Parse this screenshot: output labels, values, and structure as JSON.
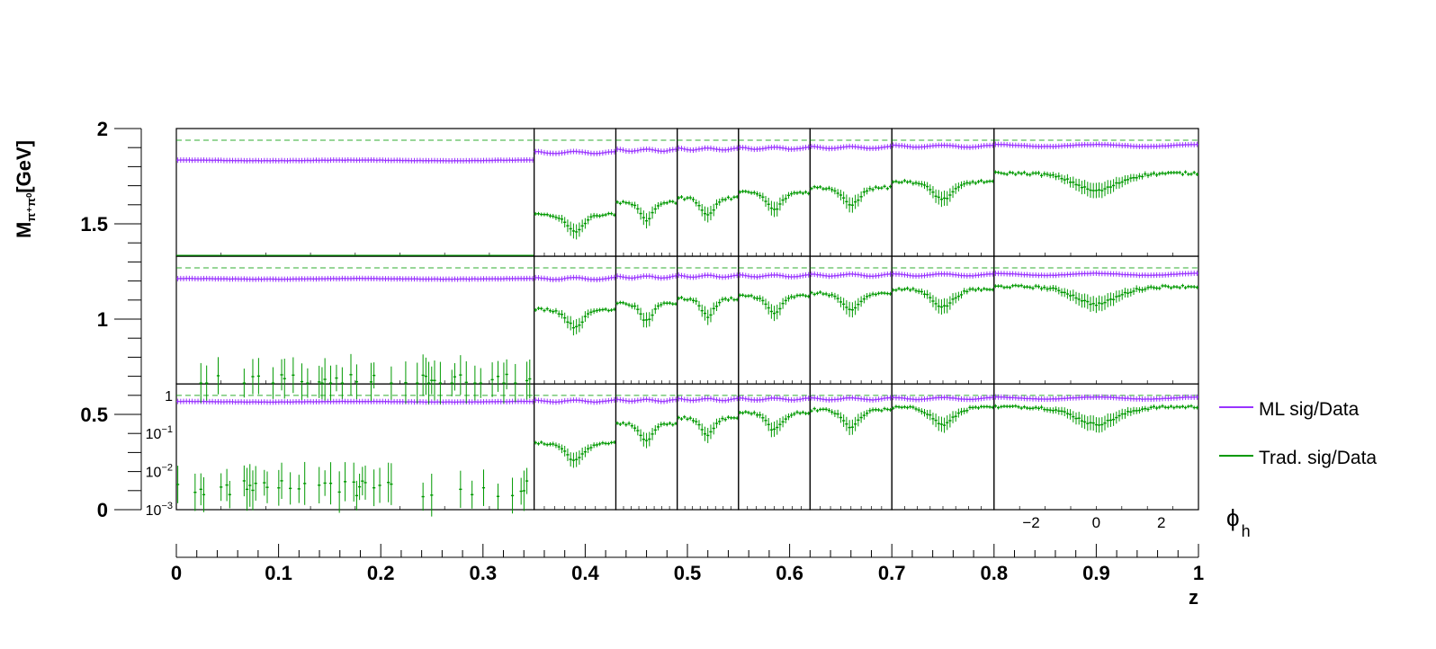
{
  "chart_data": {
    "type": "scatter",
    "title": "",
    "xlabel": "z",
    "ylabel_main": "M",
    "ylabel_sub": "π⁺π⁰",
    "ylabel_unit": "[GeV]",
    "inner_xlabel_main": "ϕ",
    "inner_xlabel_sub": "h",
    "z_axis": {
      "range": [
        0,
        1
      ],
      "tick_labels": [
        "0",
        "0.1",
        "0.2",
        "0.3",
        "0.4",
        "0.5",
        "0.6",
        "0.7",
        "0.8",
        "0.9",
        "1"
      ]
    },
    "mass_axis": {
      "range": [
        0,
        2
      ],
      "tick_labels": [
        "0",
        "0.5",
        "1",
        "1.5",
        "2"
      ]
    },
    "z_bin_edges": [
      0,
      0.35,
      0.43,
      0.49,
      0.55,
      0.62,
      0.7,
      0.8,
      1.0
    ],
    "mass_bin_edges": [
      0,
      0.66,
      1.33,
      2.0
    ],
    "inner_axes": {
      "phi_range": [
        -3.14159,
        3.14159
      ],
      "phi_tick_labels": [
        "−2",
        "0",
        "2"
      ],
      "ratio_scale": "log",
      "ratio_range": [
        0.001,
        2.0
      ],
      "ratio_tick_labels": [
        "1",
        "10",
        "10",
        "10"
      ],
      "ratio_tick_exponents": [
        "",
        "−1",
        "−2",
        "−3"
      ],
      "reference_line": 1.0
    },
    "legend": {
      "position": "right",
      "entries": [
        "ML sig/Data",
        "Trad. sig/Data"
      ]
    },
    "series": [
      {
        "name": "ML sig/Data",
        "color": "#9933ff",
        "mean_ratio": [
          [
            0.3,
            0.48,
            0.55,
            0.59,
            0.62,
            0.65,
            0.7,
            0.73
          ],
          [
            0.52,
            0.53,
            0.58,
            0.61,
            0.62,
            0.65,
            0.66,
            0.68
          ],
          [
            0.68,
            0.71,
            0.74,
            0.78,
            0.8,
            0.81,
            0.83,
            0.85
          ]
        ]
      },
      {
        "name": "Trad. sig/Data",
        "color": "#009900",
        "mean_ratio": [
          [
            null,
            0.012,
            0.025,
            0.032,
            0.045,
            0.06,
            0.085,
            0.14
          ],
          [
            0.0012,
            0.085,
            0.12,
            0.16,
            0.19,
            0.22,
            0.28,
            0.33
          ],
          [
            0.004,
            0.055,
            0.18,
            0.26,
            0.35,
            0.42,
            0.48,
            0.5
          ]
        ]
      }
    ],
    "grid": false
  }
}
